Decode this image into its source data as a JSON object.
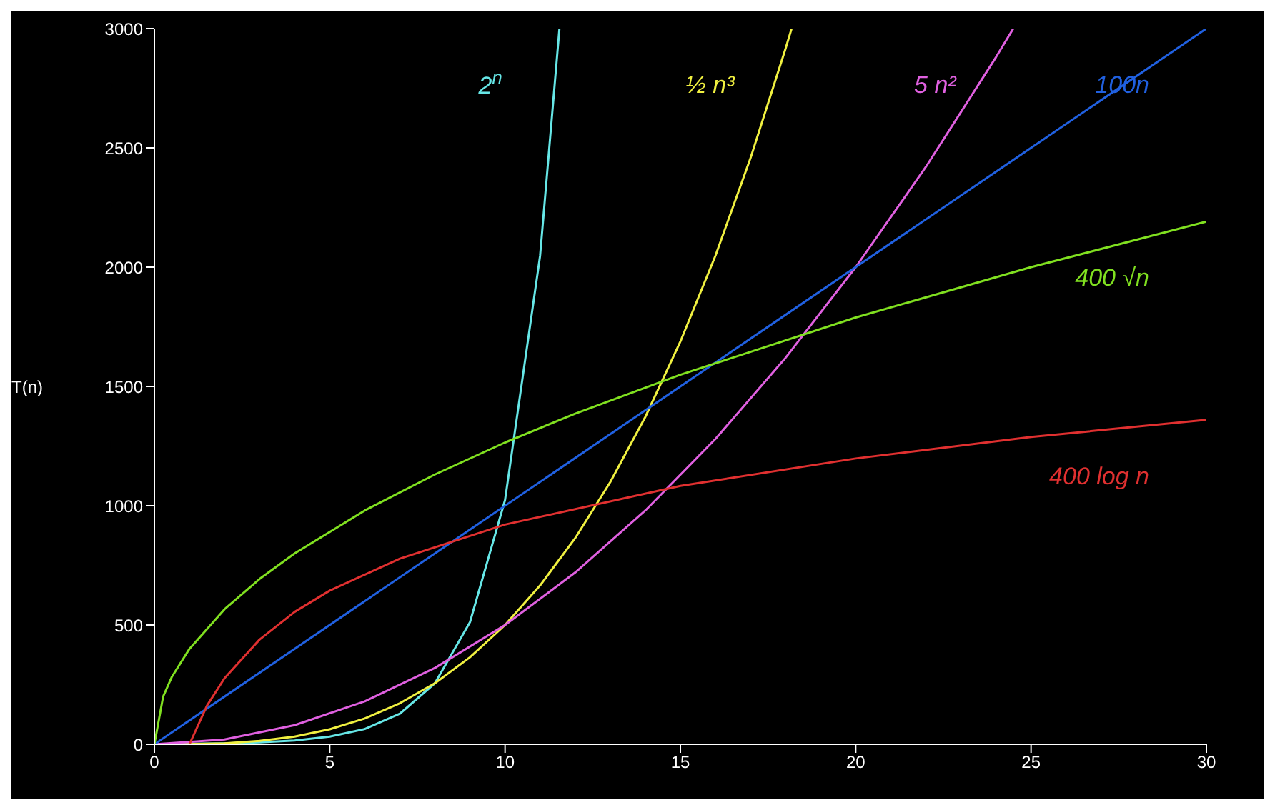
{
  "chart_data": {
    "type": "line",
    "ylabel": "T(n)",
    "xlim": [
      0,
      30
    ],
    "ylim": [
      0,
      3000
    ],
    "xticks": [
      0,
      5,
      10,
      15,
      20,
      25,
      30
    ],
    "yticks": [
      0,
      500,
      1000,
      1500,
      2000,
      2500,
      3000
    ],
    "marker": "none",
    "line_style": "solid",
    "series": [
      {
        "name": "2$^{n}$",
        "color": "#66e6e6",
        "x": [
          0,
          1,
          2,
          3,
          4,
          5,
          6,
          7,
          8,
          9,
          10,
          11,
          11.55
        ],
        "values": [
          1,
          2,
          4,
          8,
          16,
          32,
          64,
          128,
          256,
          512,
          1024,
          2048,
          2998
        ]
      },
      {
        "name": "½ n³",
        "color": "#f0f040",
        "x": [
          0,
          1,
          2,
          3,
          4,
          5,
          6,
          7,
          8,
          9,
          10,
          11,
          12,
          13,
          14,
          15,
          16,
          17,
          18,
          18.17
        ],
        "values": [
          0,
          1,
          4,
          14,
          32,
          63,
          108,
          172,
          256,
          365,
          500,
          666,
          864,
          1099,
          1372,
          1688,
          2048,
          2457,
          2916,
          2999
        ]
      },
      {
        "name": "5 n²",
        "color": "#e060e0",
        "x": [
          0,
          2,
          4,
          6,
          8,
          10,
          12,
          14,
          16,
          18,
          20,
          22,
          24,
          24.49
        ],
        "values": [
          0,
          20,
          80,
          180,
          320,
          500,
          720,
          980,
          1280,
          1620,
          2000,
          2420,
          2880,
          2999
        ]
      },
      {
        "name": "100n",
        "color": "#2060e0",
        "x": [
          0,
          30
        ],
        "values": [
          0,
          3000
        ]
      },
      {
        "name": "400 √n",
        "color": "#80e020",
        "x": [
          0,
          0.25,
          0.5,
          1,
          2,
          3,
          4,
          6,
          8,
          10,
          12,
          15,
          20,
          25,
          30
        ],
        "values": [
          0,
          200,
          283,
          400,
          566,
          693,
          800,
          980,
          1131,
          1265,
          1386,
          1549,
          1789,
          2000,
          2191
        ]
      },
      {
        "name": "400 log n",
        "color": "#e03030",
        "x": [
          1,
          1.5,
          2,
          3,
          4,
          5,
          7,
          10,
          15,
          20,
          25,
          30
        ],
        "values": [
          0,
          162,
          277,
          439,
          555,
          644,
          778,
          921,
          1083,
          1198,
          1288,
          1360
        ]
      }
    ]
  }
}
